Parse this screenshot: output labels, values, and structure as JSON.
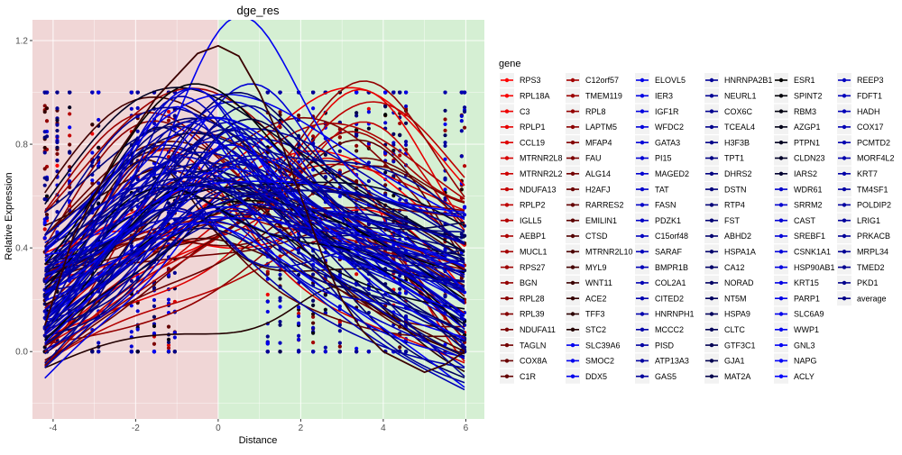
{
  "chart_data": {
    "type": "scatter",
    "title": "dge_res",
    "xlabel": "Distance",
    "ylabel": "Relative Expression",
    "xlim": [
      -4.5,
      6.45
    ],
    "ylim": [
      -0.26,
      1.28
    ],
    "x_ticks": [
      -4,
      -2,
      0,
      2,
      4,
      6
    ],
    "x_tick_labels": [
      "-4",
      "-2",
      "0",
      "2",
      "4",
      "6"
    ],
    "y_ticks": [
      0.0,
      0.4,
      0.8,
      1.2
    ],
    "y_tick_labels": [
      "0.0",
      "0.4",
      "0.8",
      "1.2"
    ],
    "grid": true,
    "background_regions": [
      {
        "x_from": -4.5,
        "x_to": 0,
        "color": "#f0d6d6"
      },
      {
        "x_from": 0,
        "x_to": 6.45,
        "color": "#d5efd3"
      }
    ],
    "x_sample_positions": [
      -4.2,
      -4.15,
      -3.9,
      -3.6,
      -3.05,
      -2.9,
      -2.1,
      -1.95,
      -1.55,
      -1.2,
      -1.05,
      1.2,
      1.5,
      1.95,
      2.3,
      2.6,
      2.95,
      3.35,
      3.65,
      4.05,
      4.25,
      4.4,
      4.55,
      5.5,
      5.9,
      5.97
    ],
    "highlight_curve": {
      "name": "C3",
      "x": [
        -4.2,
        -3.5,
        -2.5,
        -1.5,
        -0.5,
        0,
        0.5,
        1.0,
        1.5,
        2.0,
        2.5,
        3.0,
        3.5,
        4.0,
        5.0,
        5.5,
        5.97
      ],
      "y": [
        0.1,
        0.45,
        0.75,
        0.98,
        1.15,
        1.18,
        1.14,
        1.0,
        0.82,
        0.6,
        0.38,
        0.2,
        0.08,
        0.0,
        -0.08,
        -0.05,
        0.0
      ]
    },
    "legend": {
      "title": "gene",
      "position": "right",
      "entries": [
        {
          "label": "RPS3",
          "color": "#ff0000"
        },
        {
          "label": "RPL18A",
          "color": "#f70000"
        },
        {
          "label": "C3",
          "color": "#ee0000"
        },
        {
          "label": "RPLP1",
          "color": "#e60000"
        },
        {
          "label": "CCL19",
          "color": "#de0000"
        },
        {
          "label": "MTRNR2L8",
          "color": "#d60000"
        },
        {
          "label": "MTRNR2L2",
          "color": "#cd0000"
        },
        {
          "label": "NDUFA13",
          "color": "#c50000"
        },
        {
          "label": "RPLP2",
          "color": "#bd0000"
        },
        {
          "label": "IGLL5",
          "color": "#b40000"
        },
        {
          "label": "AEBP1",
          "color": "#ac0000"
        },
        {
          "label": "MUCL1",
          "color": "#a40000"
        },
        {
          "label": "RPS27",
          "color": "#9c0000"
        },
        {
          "label": "BGN",
          "color": "#930000"
        },
        {
          "label": "RPL28",
          "color": "#8b0000"
        },
        {
          "label": "RPL39",
          "color": "#830000"
        },
        {
          "label": "NDUFA11",
          "color": "#7b0000"
        },
        {
          "label": "TAGLN",
          "color": "#720000"
        },
        {
          "label": "COX8A",
          "color": "#6a0000"
        },
        {
          "label": "C1R",
          "color": "#620000"
        },
        {
          "label": "C12orf57",
          "color": "#a30000"
        },
        {
          "label": "TMEM119",
          "color": "#9b0000"
        },
        {
          "label": "RPL8",
          "color": "#930000"
        },
        {
          "label": "LAPTM5",
          "color": "#8b0000"
        },
        {
          "label": "MFAP4",
          "color": "#830000"
        },
        {
          "label": "FAU",
          "color": "#7b0000"
        },
        {
          "label": "ALG14",
          "color": "#730000"
        },
        {
          "label": "H2AFJ",
          "color": "#6b0000"
        },
        {
          "label": "RARRES2",
          "color": "#630000"
        },
        {
          "label": "EMILIN1",
          "color": "#5b0000"
        },
        {
          "label": "CTSD",
          "color": "#530000"
        },
        {
          "label": "MTRNR2L10",
          "color": "#4b0000"
        },
        {
          "label": "MYL9",
          "color": "#430000"
        },
        {
          "label": "WNT11",
          "color": "#3b0000"
        },
        {
          "label": "ACE2",
          "color": "#330000"
        },
        {
          "label": "TFF3",
          "color": "#2b0000"
        },
        {
          "label": "STC2",
          "color": "#230000"
        },
        {
          "label": "SLC39A6",
          "color": "#0000f0"
        },
        {
          "label": "SMOC2",
          "color": "#0000ee"
        },
        {
          "label": "DDX5",
          "color": "#0000ec"
        },
        {
          "label": "ELOVL5",
          "color": "#0000e8"
        },
        {
          "label": "IER3",
          "color": "#0000e4"
        },
        {
          "label": "IGF1R",
          "color": "#0000e0"
        },
        {
          "label": "WFDC2",
          "color": "#0000dc"
        },
        {
          "label": "GATA3",
          "color": "#0000d8"
        },
        {
          "label": "PI15",
          "color": "#0000d4"
        },
        {
          "label": "MAGED2",
          "color": "#0000d0"
        },
        {
          "label": "TAT",
          "color": "#0000cc"
        },
        {
          "label": "FASN",
          "color": "#0000c8"
        },
        {
          "label": "PDZK1",
          "color": "#0000c4"
        },
        {
          "label": "C15orf48",
          "color": "#0000c0"
        },
        {
          "label": "SARAF",
          "color": "#0000bc"
        },
        {
          "label": "BMPR1B",
          "color": "#0000b8"
        },
        {
          "label": "COL2A1",
          "color": "#0000b4"
        },
        {
          "label": "CITED2",
          "color": "#0000b0"
        },
        {
          "label": "HNRNPH1",
          "color": "#0000ac"
        },
        {
          "label": "MCCC2",
          "color": "#0000a8"
        },
        {
          "label": "PISD",
          "color": "#0000a4"
        },
        {
          "label": "ATP13A3",
          "color": "#0000a0"
        },
        {
          "label": "GAS5",
          "color": "#00009c"
        },
        {
          "label": "HNRNPA2B1",
          "color": "#000098"
        },
        {
          "label": "NEURL1",
          "color": "#000094"
        },
        {
          "label": "COX6C",
          "color": "#000090"
        },
        {
          "label": "TCEAL4",
          "color": "#00008c"
        },
        {
          "label": "H3F3B",
          "color": "#000088"
        },
        {
          "label": "TPT1",
          "color": "#000084"
        },
        {
          "label": "DHRS2",
          "color": "#000080"
        },
        {
          "label": "DSTN",
          "color": "#00007c"
        },
        {
          "label": "RTP4",
          "color": "#000078"
        },
        {
          "label": "FST",
          "color": "#000074"
        },
        {
          "label": "ABHD2",
          "color": "#000070"
        },
        {
          "label": "HSPA1A",
          "color": "#00006c"
        },
        {
          "label": "CA12",
          "color": "#000068"
        },
        {
          "label": "NORAD",
          "color": "#000064"
        },
        {
          "label": "NT5M",
          "color": "#000060"
        },
        {
          "label": "HSPA9",
          "color": "#00005c"
        },
        {
          "label": "CLTC",
          "color": "#000058"
        },
        {
          "label": "GTF3C1",
          "color": "#000054"
        },
        {
          "label": "GJA1",
          "color": "#000050"
        },
        {
          "label": "MAT2A",
          "color": "#00004c"
        },
        {
          "label": "ESR1",
          "color": "#000000"
        },
        {
          "label": "SPINT2",
          "color": "#000008"
        },
        {
          "label": "RBM3",
          "color": "#000010"
        },
        {
          "label": "AZGP1",
          "color": "#000018"
        },
        {
          "label": "PTPN1",
          "color": "#000020"
        },
        {
          "label": "CLDN23",
          "color": "#000028"
        },
        {
          "label": "IARS2",
          "color": "#000030"
        },
        {
          "label": "WDR61",
          "color": "#0000cc"
        },
        {
          "label": "SRRM2",
          "color": "#0000d0"
        },
        {
          "label": "CAST",
          "color": "#0000d4"
        },
        {
          "label": "SREBF1",
          "color": "#0000d8"
        },
        {
          "label": "CSNK1A1",
          "color": "#0000dc"
        },
        {
          "label": "HSP90AB1",
          "color": "#0000e0"
        },
        {
          "label": "KRT15",
          "color": "#0000e4"
        },
        {
          "label": "PARP1",
          "color": "#0000e8"
        },
        {
          "label": "SLC6A9",
          "color": "#0000ec"
        },
        {
          "label": "WWP1",
          "color": "#0000f0"
        },
        {
          "label": "GNL3",
          "color": "#0000f4"
        },
        {
          "label": "NAPG",
          "color": "#0000f8"
        },
        {
          "label": "ACLY",
          "color": "#0000fc"
        },
        {
          "label": "REEP3",
          "color": "#0000c0"
        },
        {
          "label": "FDFT1",
          "color": "#0000bc"
        },
        {
          "label": "HADH",
          "color": "#0000b8"
        },
        {
          "label": "COX17",
          "color": "#0000b4"
        },
        {
          "label": "PCMTD2",
          "color": "#0000b0"
        },
        {
          "label": "MORF4L2",
          "color": "#0000ac"
        },
        {
          "label": "KRT7",
          "color": "#0000a8"
        },
        {
          "label": "TM4SF1",
          "color": "#0000a4"
        },
        {
          "label": "POLDIP2",
          "color": "#0000a0"
        },
        {
          "label": "LRIG1",
          "color": "#00009c"
        },
        {
          "label": "PRKACB",
          "color": "#000098"
        },
        {
          "label": "MRPL34",
          "color": "#000094"
        },
        {
          "label": "TMED2",
          "color": "#000090"
        },
        {
          "label": "PKD1",
          "color": "#00008c"
        },
        {
          "label": "average",
          "color": "#000088"
        }
      ]
    }
  }
}
